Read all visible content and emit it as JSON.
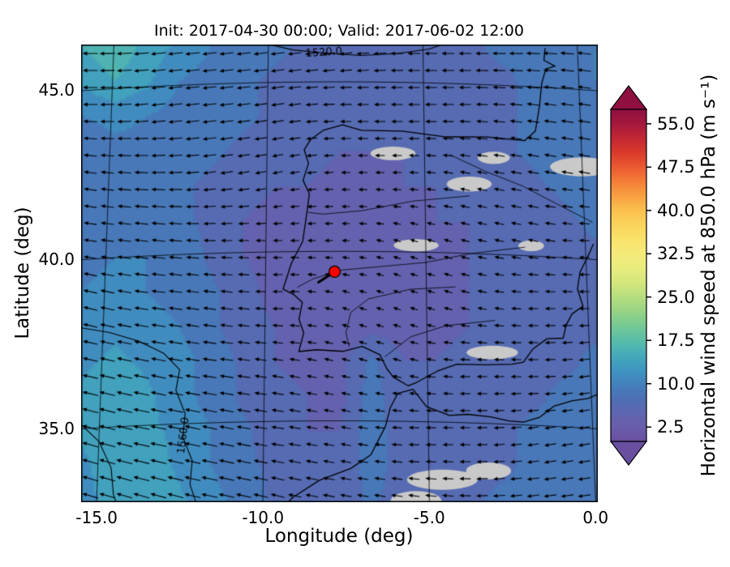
{
  "chart_data": {
    "type": "heatmap",
    "title": "Init: 2017-04-30 00:00; Valid: 2017-06-02 12:00",
    "xlabel": "Longitude (deg)",
    "ylabel": "Latitude (deg)",
    "xlim": [
      -15.75,
      0.35
    ],
    "ylim": [
      32.6,
      46.1
    ],
    "grid_on": true,
    "xticks": [
      {
        "value": -15,
        "label": "-15.0"
      },
      {
        "value": -10,
        "label": "-10.0"
      },
      {
        "value": -5,
        "label": "-5.0"
      },
      {
        "value": 0,
        "label": "0.0"
      }
    ],
    "yticks": [
      {
        "value": 45,
        "label": "45.0"
      },
      {
        "value": 40,
        "label": "40.0"
      },
      {
        "value": 35,
        "label": "35.0"
      }
    ],
    "colorbar": {
      "label": "Horizontal wind speed at 850.0 hPa (m s⁻¹)",
      "units": "m s⁻¹",
      "range": [
        0,
        57.5
      ],
      "level_step": 2.5,
      "extend": "both",
      "ticks": [
        {
          "value": 55.0,
          "label": "55.0"
        },
        {
          "value": 47.5,
          "label": "47.5"
        },
        {
          "value": 40.0,
          "label": "40.0"
        },
        {
          "value": 32.5,
          "label": "32.5"
        },
        {
          "value": 25.0,
          "label": "25.0"
        },
        {
          "value": 17.5,
          "label": "17.5"
        },
        {
          "value": 10.0,
          "label": "10.0"
        },
        {
          "value": 2.5,
          "label": "2.5"
        }
      ],
      "colormap": [
        [
          0,
          "#6a4fa0"
        ],
        [
          2.5,
          "#6a5dab"
        ],
        [
          5,
          "#5e66b0"
        ],
        [
          7.5,
          "#4d6fb4"
        ],
        [
          10,
          "#4381bc"
        ],
        [
          12.5,
          "#3e96c1"
        ],
        [
          15,
          "#46abb9"
        ],
        [
          17.5,
          "#58bda8"
        ],
        [
          20,
          "#75c994"
        ],
        [
          22.5,
          "#96d385"
        ],
        [
          25,
          "#b6de7e"
        ],
        [
          27.5,
          "#d4e67c"
        ],
        [
          30,
          "#e9ec7e"
        ],
        [
          32.5,
          "#f5ea79"
        ],
        [
          35,
          "#f9e26b"
        ],
        [
          37.5,
          "#fad45c"
        ],
        [
          40,
          "#fbc04d"
        ],
        [
          42.5,
          "#f8a041"
        ],
        [
          45,
          "#f47d36"
        ],
        [
          47.5,
          "#ea5a30"
        ],
        [
          50,
          "#d93a2b"
        ],
        [
          52.5,
          "#c22733"
        ],
        [
          55,
          "#a4183e"
        ],
        [
          57.5,
          "#8e1040"
        ]
      ]
    },
    "wind_speed_grid": {
      "lon": {
        "start": -15.6,
        "end": 0.2,
        "n": 17
      },
      "lat": {
        "start": 46.1,
        "end": 32.58,
        "n": 14
      },
      "values_mps": [
        [
          15,
          17,
          14,
          12,
          10,
          9,
          8,
          7,
          6,
          6,
          6,
          7,
          7,
          8,
          8,
          9,
          10
        ],
        [
          13,
          15,
          13,
          10,
          9,
          8,
          7,
          7,
          6,
          6,
          6,
          6,
          7,
          7,
          8,
          9,
          10
        ],
        [
          10,
          11,
          10,
          9,
          8,
          8,
          7,
          6,
          6,
          5,
          6,
          6,
          6,
          7,
          8,
          9,
          9
        ],
        [
          8,
          9,
          9,
          8,
          8,
          7,
          6,
          6,
          5,
          5,
          5,
          6,
          6,
          7,
          8,
          9,
          10
        ],
        [
          8,
          9,
          9,
          8,
          7,
          6,
          5,
          5,
          4,
          4,
          5,
          5,
          6,
          6,
          7,
          8,
          9
        ],
        [
          9,
          10,
          9,
          8,
          7,
          5,
          4,
          4,
          4,
          4,
          4,
          5,
          5,
          6,
          6,
          7,
          8
        ],
        [
          9,
          10,
          10,
          9,
          7,
          5,
          4,
          3,
          3,
          4,
          4,
          4,
          5,
          5,
          6,
          7,
          7
        ],
        [
          10,
          11,
          10,
          9,
          8,
          6,
          4,
          3,
          3,
          3,
          4,
          4,
          5,
          5,
          6,
          6,
          7
        ],
        [
          11,
          12,
          11,
          10,
          8,
          6,
          5,
          4,
          3,
          4,
          4,
          4,
          5,
          6,
          6,
          7,
          7
        ],
        [
          12,
          13,
          12,
          11,
          9,
          7,
          5,
          4,
          4,
          8,
          5,
          5,
          6,
          6,
          7,
          7,
          8
        ],
        [
          13,
          14,
          13,
          11,
          9,
          7,
          6,
          5,
          4,
          9,
          5,
          5,
          6,
          7,
          7,
          8,
          8
        ],
        [
          13,
          14,
          13,
          12,
          10,
          8,
          6,
          5,
          5,
          9,
          6,
          6,
          6,
          7,
          8,
          8,
          9
        ],
        [
          12,
          14,
          14,
          12,
          10,
          8,
          7,
          6,
          5,
          9,
          6,
          6,
          7,
          7,
          8,
          9,
          9
        ],
        [
          12,
          13,
          14,
          13,
          11,
          9,
          7,
          6,
          6,
          8,
          6,
          7,
          7,
          8,
          8,
          9,
          10
        ]
      ]
    },
    "wind_vectors": {
      "lon": {
        "start": -15.5,
        "step": 1.975,
        "n": 9
      },
      "lat": {
        "start": 46.1,
        "step": -1.9286,
        "n": 8
      },
      "u_mps": [
        [
          -9,
          -9,
          -8,
          -8,
          -7,
          -7,
          -7,
          -8,
          -8
        ],
        [
          -8,
          -8,
          -8,
          -7,
          -6,
          -6,
          -6,
          -7,
          -7
        ],
        [
          -7,
          -8,
          -7,
          -5,
          -4,
          -4,
          -5,
          -6,
          -6
        ],
        [
          -7,
          -8,
          -6,
          -4,
          -3,
          -3,
          -4,
          -5,
          -5
        ],
        [
          -8,
          -8,
          -7,
          -5,
          -3,
          -3,
          -4,
          -5,
          -5
        ],
        [
          -9,
          -9,
          -8,
          -6,
          -4,
          -4,
          -5,
          -5,
          -6
        ],
        [
          -10,
          -10,
          -9,
          -7,
          -5,
          -5,
          -5,
          -6,
          -6
        ],
        [
          -10,
          -10,
          -10,
          -8,
          -6,
          -6,
          -6,
          -7,
          -7
        ]
      ],
      "v_mps": [
        [
          0,
          -1,
          -1,
          -1,
          -1,
          0,
          0,
          0,
          1
        ],
        [
          0,
          -1,
          -1,
          -1,
          0,
          0,
          0,
          1,
          1
        ],
        [
          1,
          0,
          -1,
          -1,
          0,
          0,
          1,
          1,
          1
        ],
        [
          1,
          1,
          0,
          0,
          0,
          1,
          1,
          1,
          0
        ],
        [
          2,
          1,
          1,
          0,
          1,
          1,
          1,
          0,
          0
        ],
        [
          2,
          2,
          1,
          1,
          1,
          1,
          0,
          0,
          -1
        ],
        [
          3,
          2,
          2,
          1,
          1,
          0,
          0,
          -1,
          -1
        ],
        [
          3,
          3,
          2,
          2,
          1,
          1,
          0,
          -1,
          -1
        ]
      ]
    },
    "contours": [
      {
        "label": "1520.0",
        "label_pos": [
          -8.2,
          45.86
        ],
        "label_rotation_deg": -4,
        "points": [
          [
            -10.3,
            46.2
          ],
          [
            -9.2,
            45.95
          ],
          [
            -8.2,
            45.85
          ],
          [
            -7.0,
            45.78
          ],
          [
            -5.8,
            45.85
          ],
          [
            -4.8,
            46.0
          ],
          [
            -4.2,
            46.2
          ]
        ]
      },
      {
        "label": "1560.0",
        "label_pos": [
          -12.43,
          34.65
        ],
        "label_rotation_deg": -83,
        "points": [
          [
            -11.95,
            32.5
          ],
          [
            -12.2,
            33.2
          ],
          [
            -12.15,
            33.9
          ],
          [
            -12.45,
            34.6
          ],
          [
            -12.4,
            35.3
          ],
          [
            -12.7,
            36.0
          ],
          [
            -12.6,
            36.6
          ],
          [
            -13.1,
            37.1
          ],
          [
            -13.9,
            37.5
          ],
          [
            -14.8,
            37.8
          ],
          [
            -15.75,
            38.0
          ]
        ]
      },
      {
        "label": "",
        "label_pos": null,
        "label_rotation_deg": 0,
        "points": [
          [
            -15.75,
            35.3
          ],
          [
            -15.0,
            34.6
          ],
          [
            -14.6,
            33.8
          ],
          [
            -14.5,
            33.0
          ],
          [
            -14.3,
            32.5
          ]
        ]
      }
    ],
    "coastlines": [
      [
        [
          -1.8,
          43.4
        ],
        [
          -3.0,
          43.46
        ],
        [
          -4.3,
          43.42
        ],
        [
          -5.7,
          43.56
        ],
        [
          -7.0,
          43.57
        ],
        [
          -7.6,
          43.73
        ],
        [
          -8.2,
          43.58
        ],
        [
          -8.62,
          43.3
        ],
        [
          -8.82,
          43.0
        ],
        [
          -8.68,
          42.6
        ],
        [
          -8.85,
          42.1
        ],
        [
          -8.65,
          41.7
        ],
        [
          -8.73,
          41.1
        ],
        [
          -8.85,
          40.3
        ],
        [
          -9.2,
          39.65
        ],
        [
          -9.45,
          38.9
        ],
        [
          -9.1,
          38.72
        ],
        [
          -8.85,
          38.5
        ],
        [
          -8.95,
          38.0
        ],
        [
          -8.8,
          37.6
        ],
        [
          -8.95,
          37.05
        ],
        [
          -8.4,
          37.1
        ],
        [
          -7.6,
          37.05
        ],
        [
          -7.0,
          37.2
        ],
        [
          -6.45,
          36.95
        ],
        [
          -6.25,
          36.55
        ],
        [
          -6.05,
          36.3
        ],
        [
          -5.6,
          36.05
        ],
        [
          -5.35,
          36.15
        ],
        [
          -4.7,
          36.5
        ],
        [
          -4.1,
          36.72
        ],
        [
          -3.2,
          36.73
        ],
        [
          -2.4,
          36.78
        ],
        [
          -2.05,
          36.85
        ],
        [
          -1.75,
          37.25
        ],
        [
          -1.3,
          37.58
        ],
        [
          -0.8,
          37.62
        ],
        [
          -0.7,
          38.0
        ],
        [
          -0.5,
          38.35
        ],
        [
          -0.15,
          38.6
        ],
        [
          -0.3,
          39.1
        ],
        [
          -0.2,
          39.6
        ],
        [
          0.05,
          40.05
        ],
        [
          0.25,
          40.45
        ]
      ],
      [
        [
          -1.8,
          43.4
        ],
        [
          -1.45,
          43.7
        ],
        [
          -1.3,
          44.4
        ],
        [
          -1.2,
          45.1
        ],
        [
          -1.05,
          45.55
        ],
        [
          -0.75,
          45.65
        ],
        [
          -1.1,
          45.8
        ],
        [
          -1.05,
          46.15
        ]
      ],
      [
        [
          -5.92,
          35.82
        ],
        [
          -5.45,
          35.95
        ],
        [
          -5.05,
          35.45
        ],
        [
          -4.35,
          35.2
        ],
        [
          -3.8,
          35.25
        ],
        [
          -3.1,
          35.2
        ],
        [
          -2.55,
          35.1
        ],
        [
          -2.1,
          35.08
        ],
        [
          -1.6,
          35.25
        ],
        [
          -1.15,
          35.6
        ],
        [
          -0.6,
          35.78
        ],
        [
          -0.1,
          35.88
        ],
        [
          0.25,
          36.05
        ]
      ],
      [
        [
          -5.92,
          35.82
        ],
        [
          -6.15,
          35.4
        ],
        [
          -6.3,
          34.85
        ],
        [
          -6.75,
          34.0
        ],
        [
          -7.35,
          33.6
        ],
        [
          -8.3,
          33.25
        ],
        [
          -9.1,
          32.75
        ],
        [
          -9.3,
          32.55
        ]
      ]
    ],
    "rivers": [
      [
        [
          -1.9,
          40.25
        ],
        [
          -3.6,
          40.0
        ],
        [
          -5.0,
          39.7
        ],
        [
          -6.5,
          39.55
        ],
        [
          -7.6,
          39.45
        ],
        [
          -8.5,
          39.2
        ],
        [
          -9.0,
          38.95
        ]
      ],
      [
        [
          -4.2,
          42.9
        ],
        [
          -3.1,
          42.45
        ],
        [
          -1.9,
          42.05
        ],
        [
          -0.9,
          41.6
        ],
        [
          0.25,
          41.1
        ]
      ],
      [
        [
          -3.6,
          41.7
        ],
        [
          -5.4,
          41.5
        ],
        [
          -7.0,
          41.2
        ],
        [
          -8.2,
          41.1
        ],
        [
          -8.68,
          41.15
        ]
      ],
      [
        [
          -4.1,
          39.0
        ],
        [
          -5.5,
          38.9
        ],
        [
          -6.8,
          38.6
        ],
        [
          -7.35,
          38.2
        ],
        [
          -7.5,
          37.6
        ],
        [
          -7.4,
          37.2
        ]
      ],
      [
        [
          -2.9,
          38.05
        ],
        [
          -4.4,
          37.85
        ],
        [
          -5.5,
          37.5
        ],
        [
          -6.3,
          36.9
        ]
      ]
    ],
    "masked_terrain_gray": [
      [
        0.0,
        42.72,
        1.0,
        0.28
      ],
      [
        -6.0,
        42.9,
        0.7,
        0.2
      ],
      [
        -3.6,
        42.05,
        0.7,
        0.22
      ],
      [
        -2.8,
        42.85,
        0.5,
        0.18
      ],
      [
        -5.3,
        40.2,
        0.7,
        0.18
      ],
      [
        -1.7,
        40.3,
        0.4,
        0.16
      ],
      [
        -3.0,
        37.1,
        0.8,
        0.2
      ],
      [
        -4.6,
        33.3,
        1.1,
        0.3
      ],
      [
        -3.2,
        33.6,
        0.7,
        0.25
      ],
      [
        -5.4,
        32.65,
        0.8,
        0.3
      ]
    ],
    "station_marker": {
      "lon": -7.85,
      "lat": 39.4,
      "color": "#ff0000"
    },
    "map_colors": {
      "masked": "#c9c9c9",
      "coast": "#000000",
      "graticule": "#000000"
    }
  }
}
